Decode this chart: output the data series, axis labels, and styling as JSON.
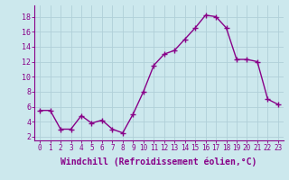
{
  "x": [
    0,
    1,
    2,
    3,
    4,
    5,
    6,
    7,
    8,
    9,
    10,
    11,
    12,
    13,
    14,
    15,
    16,
    17,
    18,
    19,
    20,
    21,
    22,
    23
  ],
  "y": [
    5.5,
    5.5,
    3.0,
    3.0,
    4.8,
    3.8,
    4.2,
    3.0,
    2.5,
    5.0,
    8.0,
    11.5,
    13.0,
    13.5,
    15.0,
    16.5,
    18.2,
    18.0,
    16.5,
    12.3,
    12.3,
    12.0,
    7.0,
    6.3
  ],
  "line_color": "#880088",
  "marker": "+",
  "marker_size": 4,
  "linewidth": 1.0,
  "xlabel": "Windchill (Refroidissement éolien,°C)",
  "xlabel_fontsize": 7,
  "xtick_labels": [
    "0",
    "1",
    "2",
    "3",
    "4",
    "5",
    "6",
    "7",
    "8",
    "9",
    "10",
    "11",
    "12",
    "13",
    "14",
    "15",
    "16",
    "17",
    "18",
    "19",
    "20",
    "21",
    "22",
    "23"
  ],
  "ytick_labels": [
    "2",
    "4",
    "6",
    "8",
    "10",
    "12",
    "14",
    "16",
    "18"
  ],
  "ytick_values": [
    2,
    4,
    6,
    8,
    10,
    12,
    14,
    16,
    18
  ],
  "ylim": [
    1.5,
    19.5
  ],
  "xlim": [
    -0.5,
    23.5
  ],
  "bg_color": "#cce8ed",
  "grid_color": "#b0d0d8",
  "tick_color": "#880088",
  "font_family": "monospace",
  "tick_fontsize": 5.5
}
